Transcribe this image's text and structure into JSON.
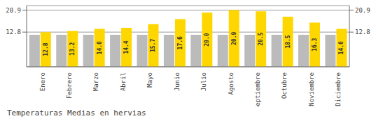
{
  "chart_data": {
    "type": "bar",
    "title": "Temperaturas Medias en hervias",
    "categories": [
      "Enero",
      "Febrero",
      "Marzo",
      "Abril",
      "Mayo",
      "Junio",
      "Julio",
      "Agosto",
      "Septiembre",
      "Octubre",
      "Noviembre",
      "Diciembre"
    ],
    "series": [
      {
        "color": "#BBBBBB",
        "values": [
          11.8,
          11.8,
          11.8,
          11.8,
          11.8,
          11.8,
          11.8,
          11.8,
          11.8,
          11.8,
          11.8,
          11.8
        ]
      },
      {
        "color": "#FFD700",
        "values": [
          12.8,
          13.2,
          14.0,
          14.4,
          15.7,
          17.6,
          20.0,
          20.9,
          20.5,
          18.5,
          16.3,
          14.0
        ],
        "value_labels": [
          "12.8",
          "13.2",
          "14.0",
          "14.4",
          "15.7",
          "17.6",
          "20.0",
          "20.9",
          "20.5",
          "18.5",
          "16.3",
          "14.0"
        ],
        "data_labels": true
      }
    ],
    "ylim": [
      0,
      22.6
    ],
    "yticks": [
      12.8,
      20.9
    ],
    "y2lim": [
      0,
      22.6
    ],
    "y2ticks": [
      12.8,
      20.9
    ],
    "grid": true
  }
}
